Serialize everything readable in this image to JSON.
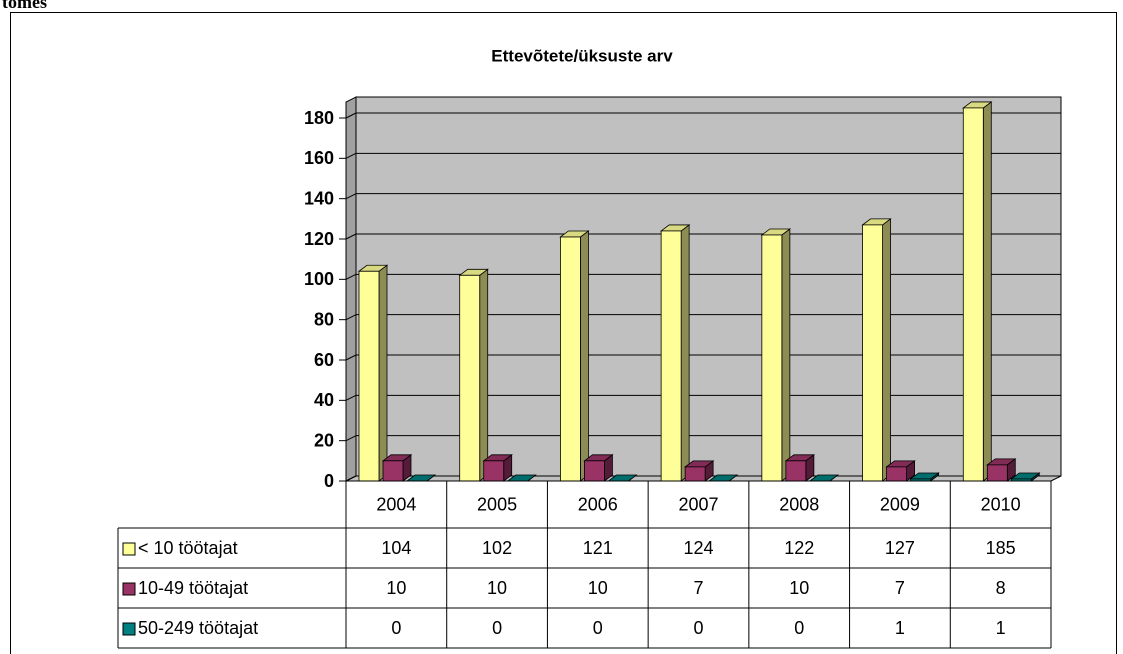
{
  "page_text": "tomes",
  "chart_data": {
    "type": "bar3d",
    "title": "Ettevõtete/üksuste arv",
    "categories": [
      "2004",
      "2005",
      "2006",
      "2007",
      "2008",
      "2009",
      "2010"
    ],
    "series": [
      {
        "name": "< 10 töötajat",
        "color": "#FFFF99",
        "values": [
          104,
          102,
          121,
          124,
          122,
          127,
          185
        ]
      },
      {
        "name": "10-49 töötajat",
        "color": "#993366",
        "values": [
          10,
          10,
          10,
          7,
          10,
          7,
          8
        ]
      },
      {
        "name": "50-249 töötajat",
        "color": "#008080",
        "values": [
          0,
          0,
          0,
          0,
          0,
          1,
          1
        ]
      }
    ],
    "ylim": [
      0,
      180
    ],
    "yticks": [
      0,
      20,
      40,
      60,
      80,
      100,
      120,
      140,
      160,
      180
    ],
    "grid": true,
    "data_table": true
  }
}
